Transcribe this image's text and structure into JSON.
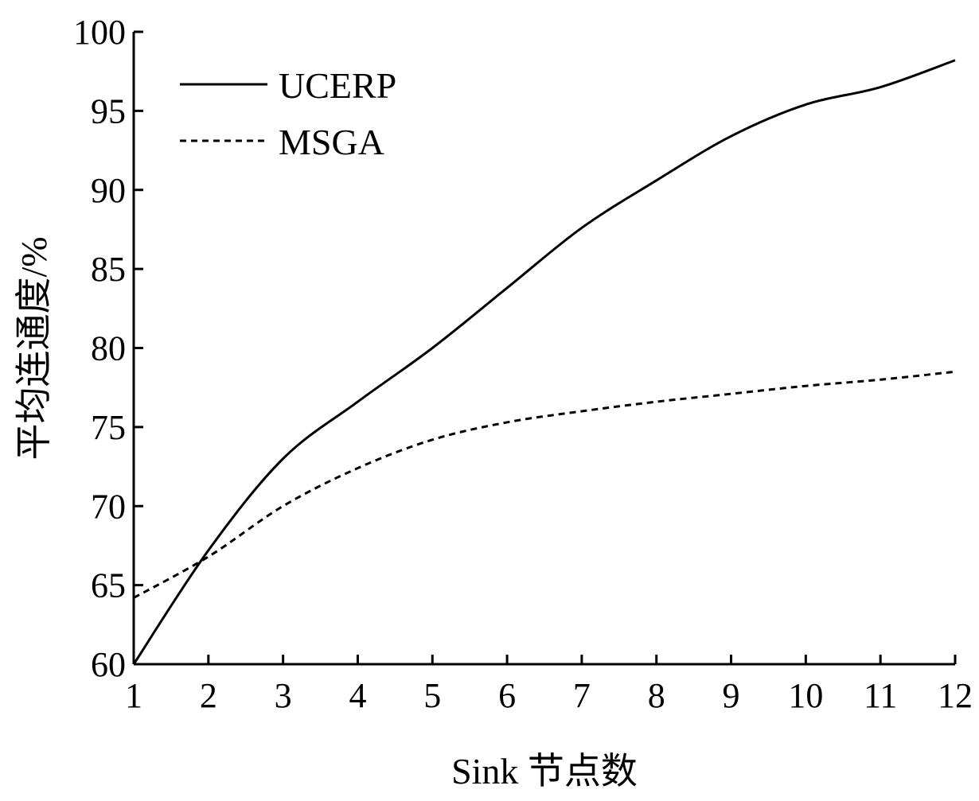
{
  "chart_data": {
    "type": "line",
    "title": "",
    "xlabel": "Sink 节点数",
    "ylabel": "平均连通度/%",
    "xlim": [
      1,
      12
    ],
    "ylim": [
      60,
      100
    ],
    "xticks": [
      1,
      2,
      3,
      4,
      5,
      6,
      7,
      8,
      9,
      10,
      11,
      12
    ],
    "yticks": [
      60,
      65,
      70,
      75,
      80,
      85,
      90,
      95,
      100
    ],
    "grid": false,
    "legend_position": "top-left",
    "x": [
      1,
      2,
      3,
      4,
      5,
      6,
      7,
      8,
      9,
      10,
      11,
      12
    ],
    "series": [
      {
        "name": "UCERP",
        "style": "solid",
        "values": [
          60.0,
          67.2,
          73.0,
          76.6,
          80.0,
          83.8,
          87.6,
          90.6,
          93.4,
          95.4,
          96.5,
          98.2
        ]
      },
      {
        "name": "MSGA",
        "style": "dashed",
        "values": [
          64.2,
          66.8,
          70.0,
          72.4,
          74.2,
          75.3,
          76.0,
          76.6,
          77.1,
          77.6,
          78.0,
          78.5
        ]
      }
    ]
  }
}
